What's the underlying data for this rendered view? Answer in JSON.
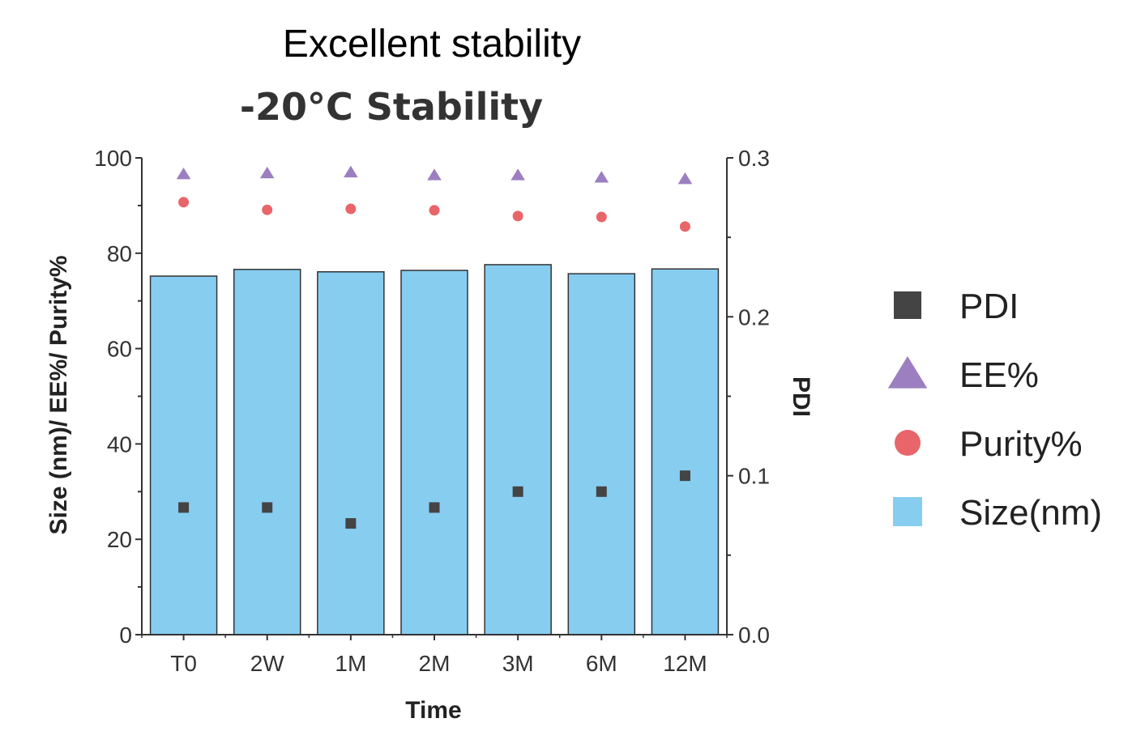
{
  "chart_data": {
    "type": "bar",
    "title": "Excellent stability",
    "subtitle": "-20°C Stability",
    "xlabel": "Time",
    "ylabel": "Size (nm)/ EE%/ Purity%",
    "y2label": "PDI",
    "categories": [
      "T0",
      "2W",
      "1M",
      "2M",
      "3M",
      "6M",
      "12M"
    ],
    "ylim": [
      0,
      100
    ],
    "yticks": [
      "0",
      "20",
      "40",
      "60",
      "80",
      "100"
    ],
    "y2lim": [
      0,
      0.3
    ],
    "y2ticks": [
      "0.0",
      "0.1",
      "0.2",
      "0.3"
    ],
    "series": [
      {
        "name": "Size(nm)",
        "type": "bar",
        "axis": "left",
        "color": "#87CDF0",
        "values": [
          75.2,
          76.6,
          76.1,
          76.4,
          77.6,
          75.7,
          76.7
        ]
      },
      {
        "name": "EE%",
        "type": "scatter",
        "marker": "triangle",
        "axis": "left",
        "color": "#9B7FC0",
        "values": [
          96.6,
          96.8,
          97.0,
          96.4,
          96.4,
          95.9,
          95.6
        ]
      },
      {
        "name": "Purity%",
        "type": "scatter",
        "marker": "circle",
        "axis": "left",
        "color": "#E8656A",
        "values": [
          90.7,
          89.1,
          89.3,
          89.0,
          87.8,
          87.6,
          85.6
        ]
      },
      {
        "name": "PDI",
        "type": "scatter",
        "marker": "square",
        "axis": "right",
        "color": "#444444",
        "values": [
          0.08,
          0.08,
          0.07,
          0.08,
          0.09,
          0.09,
          0.1
        ]
      }
    ],
    "legend_order": [
      "PDI",
      "EE%",
      "Purity%",
      "Size(nm)"
    ],
    "legend_position": "right",
    "grid": false
  }
}
